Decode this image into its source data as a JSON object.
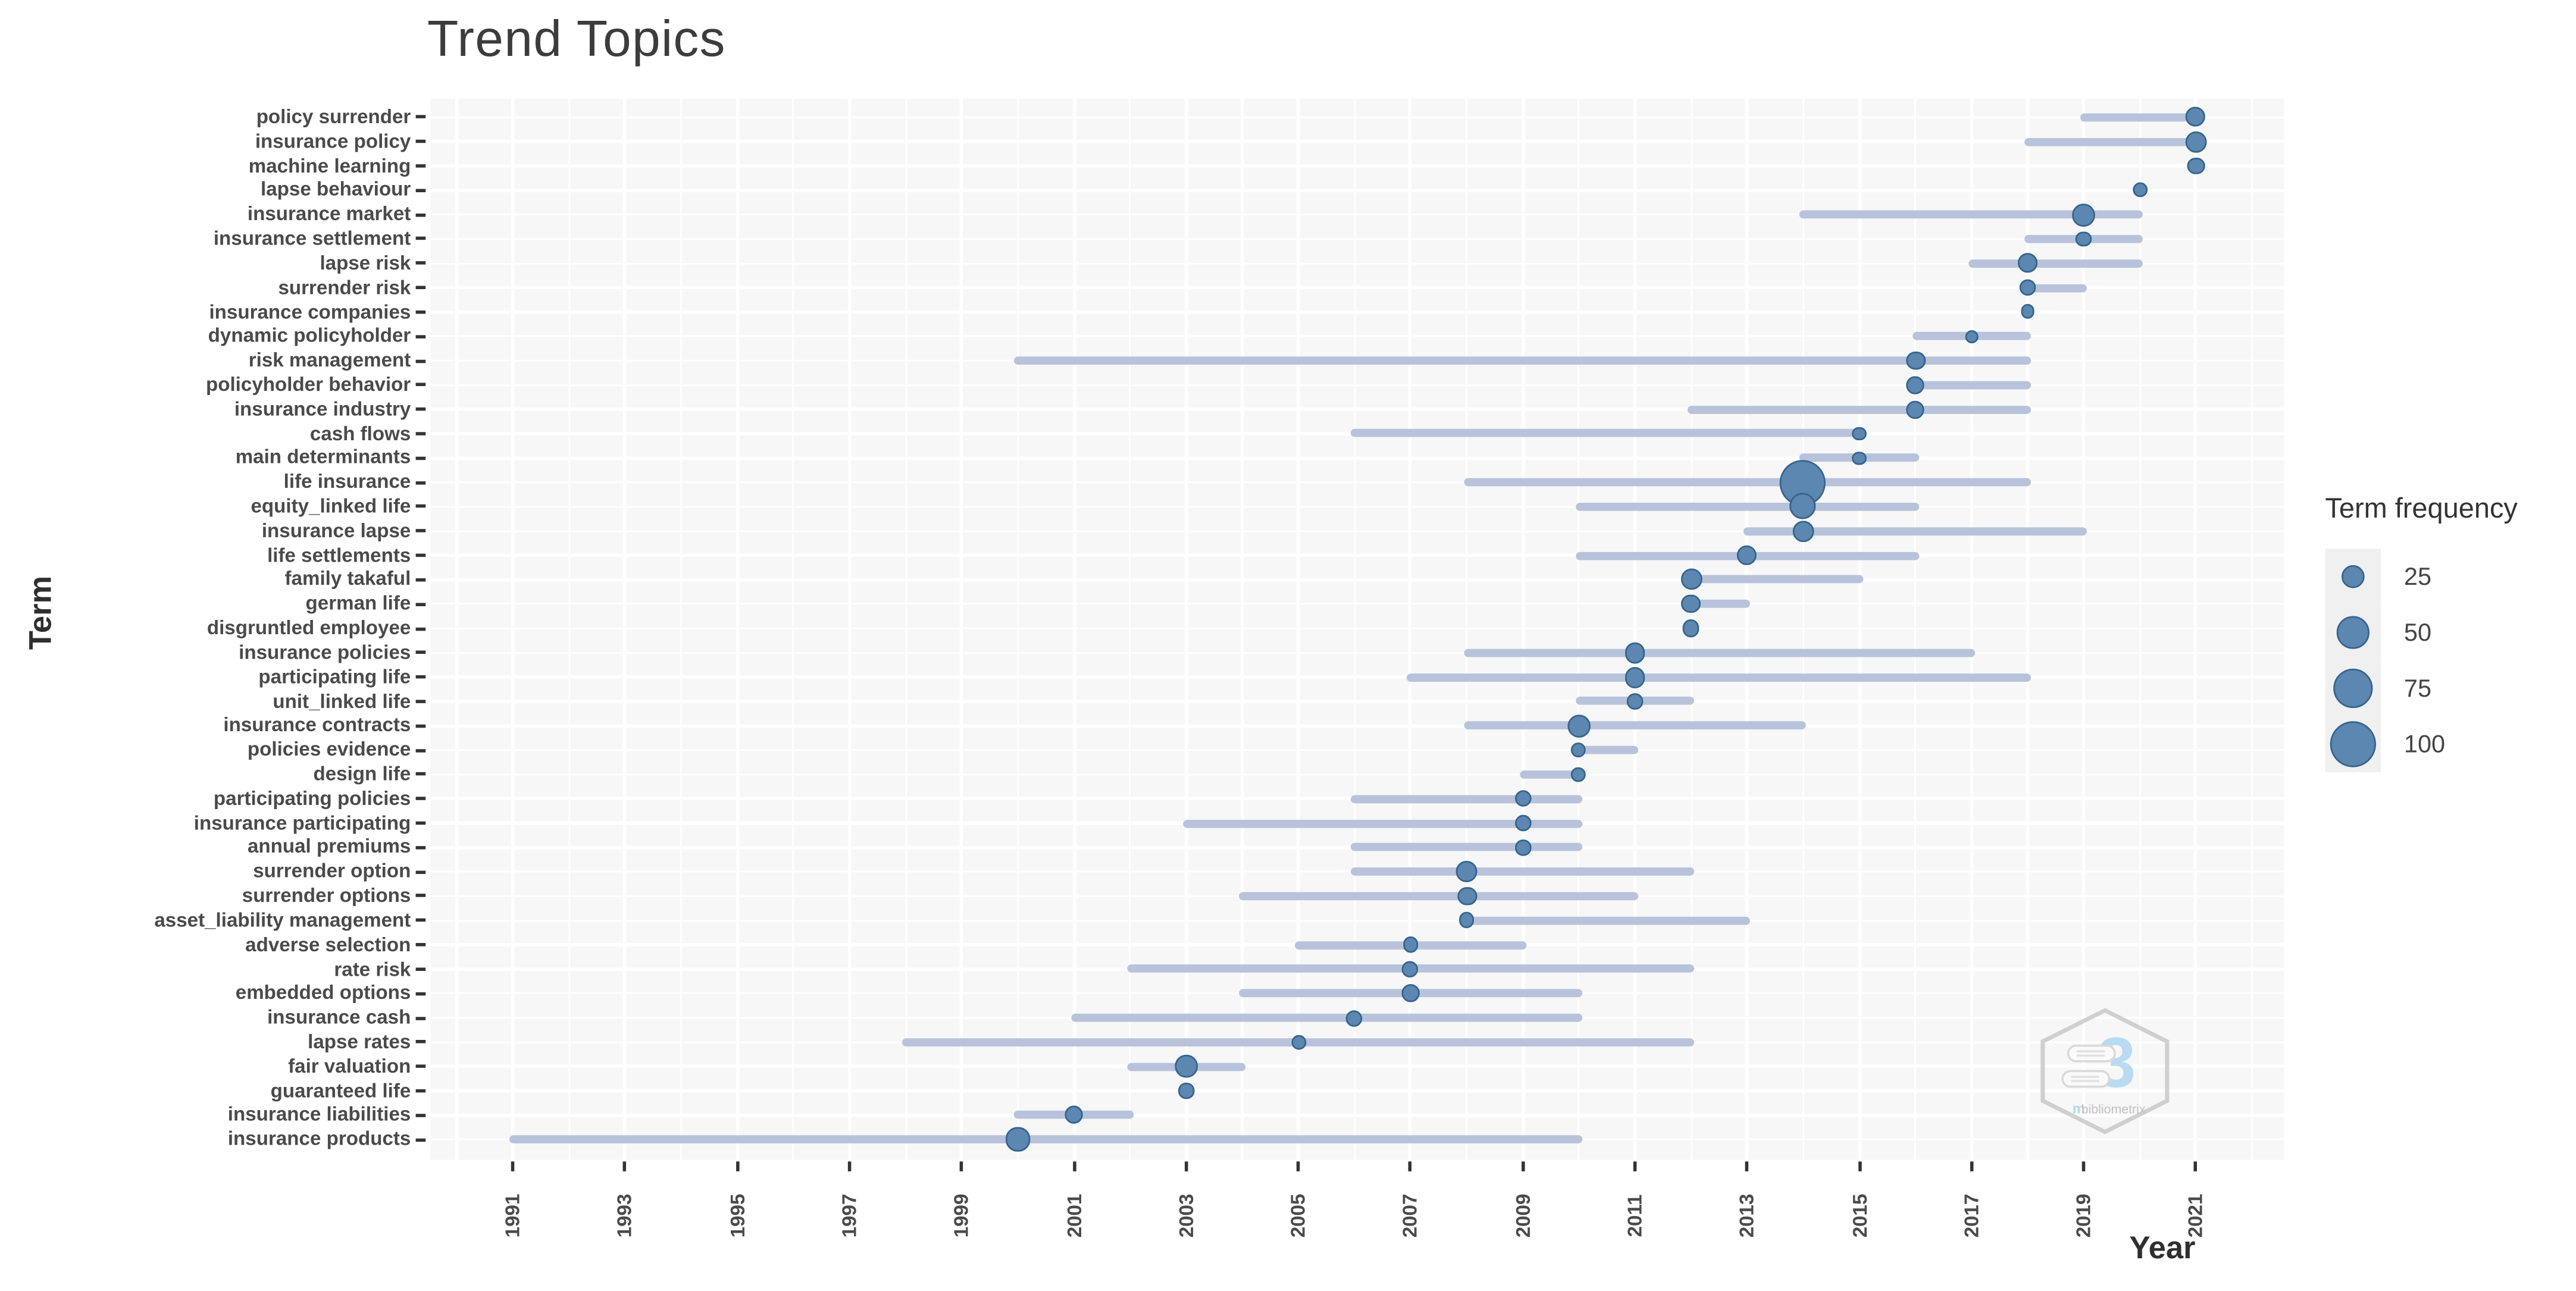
{
  "page": {
    "title": "Trend Topics"
  },
  "colors": {
    "bubble_fill": "#5b87b1",
    "bubble_border": "#36648b",
    "range_line": "#b8c3db",
    "panel_bg": "#f7f7f8",
    "gridline": "#ffffff",
    "axis_text": "#4a4a4a",
    "title_text": "#3c3c3c",
    "legend_key_bg": "#f0f0f0",
    "watermark_gray": "#c9c9c9",
    "watermark_blue": "#aed7f2"
  },
  "watermark": {
    "label": "bibliometrix",
    "glyph": "3"
  },
  "chart_data": {
    "type": "scatter",
    "subtype": "bubble-range-timeline",
    "title": "Trend Topics",
    "xlabel": "Year",
    "ylabel": "Term",
    "x_ticks": [
      1991,
      1993,
      1995,
      1997,
      1999,
      2001,
      2003,
      2005,
      2007,
      2009,
      2011,
      2013,
      2015,
      2017,
      2019,
      2021
    ],
    "x_range": [
      1989.5,
      2022.6
    ],
    "grid": "white gridlines on light gray panel; vertical line per year, horizontal line per term row",
    "legend": {
      "title": "Term frequency",
      "sizes": [
        25,
        50,
        75,
        100
      ],
      "position": "right"
    },
    "terms": [
      {
        "term": "policy surrender",
        "start": 2019,
        "peak": 2021,
        "end": 2021,
        "freq": 18
      },
      {
        "term": "insurance policy",
        "start": 2018,
        "peak": 2021,
        "end": 2021,
        "freq": 22
      },
      {
        "term": "machine learning",
        "start": 2021,
        "peak": 2021,
        "end": 2021,
        "freq": 15
      },
      {
        "term": "lapse behaviour",
        "start": 2020,
        "peak": 2020,
        "end": 2020,
        "freq": 11
      },
      {
        "term": "insurance market",
        "start": 2014,
        "peak": 2019,
        "end": 2020,
        "freq": 24
      },
      {
        "term": "insurance settlement",
        "start": 2018,
        "peak": 2019,
        "end": 2020,
        "freq": 11
      },
      {
        "term": "lapse risk",
        "start": 2017,
        "peak": 2018,
        "end": 2020,
        "freq": 18
      },
      {
        "term": "surrender risk",
        "start": 2018,
        "peak": 2018,
        "end": 2019,
        "freq": 14
      },
      {
        "term": "insurance companies",
        "start": 2018,
        "peak": 2018,
        "end": 2018,
        "freq": 10
      },
      {
        "term": "dynamic policyholder",
        "start": 2016,
        "peak": 2017,
        "end": 2018,
        "freq": 9
      },
      {
        "term": "risk management",
        "start": 2000,
        "peak": 2016,
        "end": 2018,
        "freq": 18
      },
      {
        "term": "policyholder behavior",
        "start": 2016,
        "peak": 2016,
        "end": 2018,
        "freq": 15
      },
      {
        "term": "insurance industry",
        "start": 2012,
        "peak": 2016,
        "end": 2018,
        "freq": 15
      },
      {
        "term": "cash flows",
        "start": 2006,
        "peak": 2015,
        "end": 2015,
        "freq": 9
      },
      {
        "term": "main determinants",
        "start": 2014,
        "peak": 2015,
        "end": 2016,
        "freq": 9
      },
      {
        "term": "life insurance",
        "start": 2008,
        "peak": 2014,
        "end": 2018,
        "freq": 100
      },
      {
        "term": "equity_linked life",
        "start": 2010,
        "peak": 2014,
        "end": 2016,
        "freq": 33
      },
      {
        "term": "insurance lapse",
        "start": 2013,
        "peak": 2014,
        "end": 2019,
        "freq": 22
      },
      {
        "term": "life settlements",
        "start": 2010,
        "peak": 2013,
        "end": 2016,
        "freq": 19
      },
      {
        "term": "family takaful",
        "start": 2012,
        "peak": 2012,
        "end": 2015,
        "freq": 22
      },
      {
        "term": "german life",
        "start": 2012,
        "peak": 2012,
        "end": 2013,
        "freq": 17
      },
      {
        "term": "disgruntled employee",
        "start": 2012,
        "peak": 2012,
        "end": 2012,
        "freq": 13
      },
      {
        "term": "insurance policies",
        "start": 2008,
        "peak": 2011,
        "end": 2017,
        "freq": 21
      },
      {
        "term": "participating life",
        "start": 2007,
        "peak": 2011,
        "end": 2018,
        "freq": 21
      },
      {
        "term": "unit_linked life",
        "start": 2010,
        "peak": 2011,
        "end": 2012,
        "freq": 12
      },
      {
        "term": "insurance contracts",
        "start": 2008,
        "peak": 2010,
        "end": 2014,
        "freq": 26
      },
      {
        "term": "policies evidence",
        "start": 2010,
        "peak": 2010,
        "end": 2011,
        "freq": 10
      },
      {
        "term": "design life",
        "start": 2009,
        "peak": 2010,
        "end": 2010,
        "freq": 10
      },
      {
        "term": "participating policies",
        "start": 2006,
        "peak": 2009,
        "end": 2010,
        "freq": 13
      },
      {
        "term": "insurance participating",
        "start": 2003,
        "peak": 2009,
        "end": 2010,
        "freq": 13
      },
      {
        "term": "annual premiums",
        "start": 2006,
        "peak": 2009,
        "end": 2010,
        "freq": 12
      },
      {
        "term": "surrender option",
        "start": 2006,
        "peak": 2008,
        "end": 2012,
        "freq": 21
      },
      {
        "term": "surrender options",
        "start": 2004,
        "peak": 2008,
        "end": 2011,
        "freq": 18
      },
      {
        "term": "asset_liability management",
        "start": 2008,
        "peak": 2008,
        "end": 2013,
        "freq": 12
      },
      {
        "term": "adverse selection",
        "start": 2005,
        "peak": 2007,
        "end": 2009,
        "freq": 12
      },
      {
        "term": "rate risk",
        "start": 2002,
        "peak": 2007,
        "end": 2012,
        "freq": 13
      },
      {
        "term": "embedded options",
        "start": 2004,
        "peak": 2007,
        "end": 2010,
        "freq": 15
      },
      {
        "term": "insurance cash",
        "start": 2001,
        "peak": 2006,
        "end": 2010,
        "freq": 13
      },
      {
        "term": "lapse rates",
        "start": 1998,
        "peak": 2005,
        "end": 2012,
        "freq": 11
      },
      {
        "term": "fair valuation",
        "start": 2002,
        "peak": 2003,
        "end": 2004,
        "freq": 24
      },
      {
        "term": "guaranteed life",
        "start": 2003,
        "peak": 2003,
        "end": 2003,
        "freq": 12
      },
      {
        "term": "insurance liabilities",
        "start": 2000,
        "peak": 2001,
        "end": 2002,
        "freq": 16
      },
      {
        "term": "insurance products",
        "start": 1991,
        "peak": 2000,
        "end": 2010,
        "freq": 26
      }
    ]
  }
}
